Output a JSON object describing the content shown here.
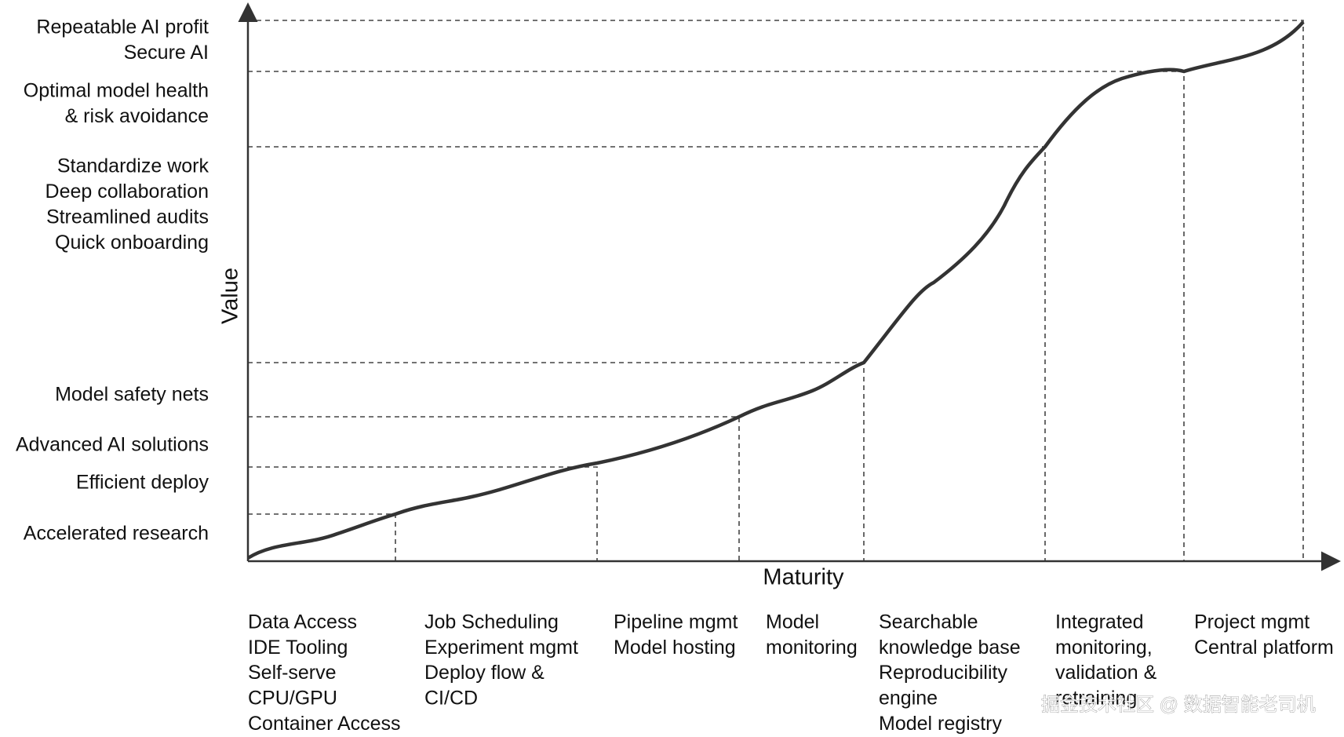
{
  "y_axis_title": "Value",
  "x_axis_title": "Maturity",
  "value_levels": [
    [
      "Repeatable AI profit",
      "Secure AI"
    ],
    [
      "Optimal model health",
      "& risk avoidance"
    ],
    [
      "Standardize work",
      "Deep collaboration",
      "Streamlined audits",
      "Quick onboarding"
    ],
    [
      "Model safety nets"
    ],
    [
      "Advanced AI solutions"
    ],
    [
      "Efficient deploy"
    ],
    [
      "Accelerated research"
    ]
  ],
  "maturity_stages": [
    [
      "Data Access",
      "IDE Tooling",
      "Self-serve",
      "CPU/GPU",
      "Container Access"
    ],
    [
      "Job Scheduling",
      "Experiment mgmt",
      "Deploy flow &",
      "CI/CD"
    ],
    [
      "Pipeline mgmt",
      "Model hosting"
    ],
    [
      "Model",
      "monitoring"
    ],
    [
      "Searchable",
      "knowledge base",
      "Reproducibility",
      "engine",
      "Model registry"
    ],
    [
      "Integrated",
      "monitoring,",
      "validation &",
      "retraining"
    ],
    [
      "Project mgmt",
      "Central platform"
    ]
  ],
  "watermark": "掘金技术社区 @ 数据智能老司机"
}
